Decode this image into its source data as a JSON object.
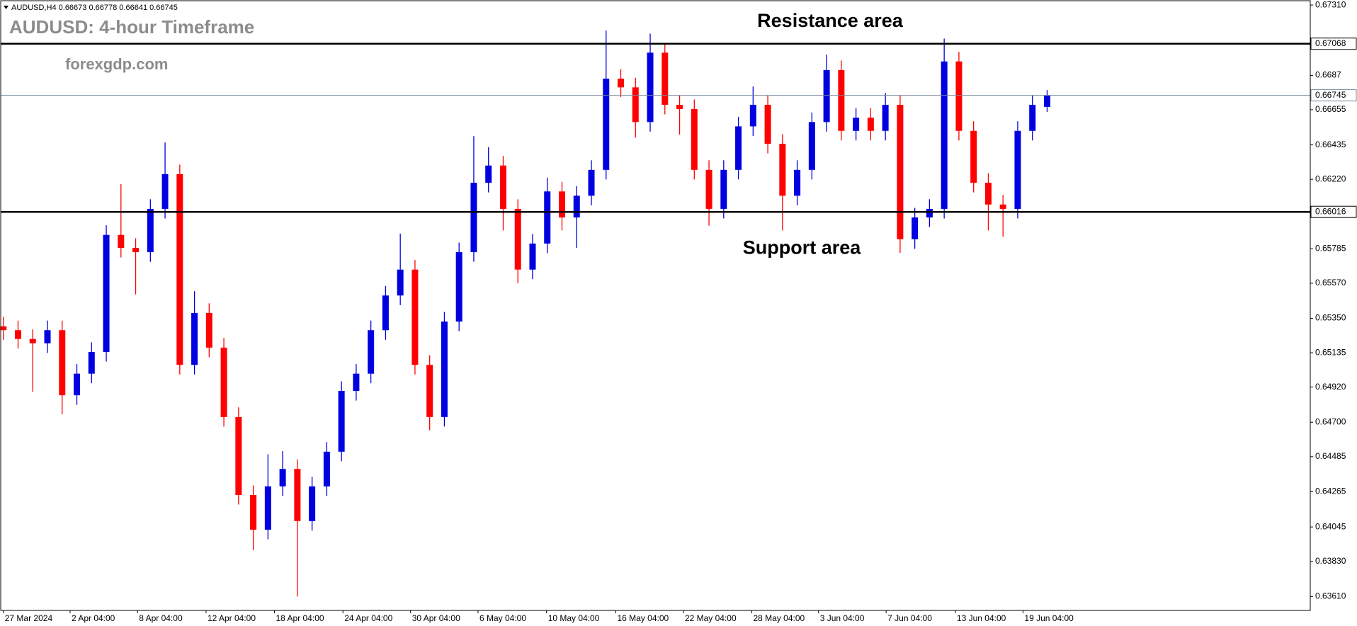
{
  "chart_data": {
    "type": "candlestick",
    "symbol": "AUDUSD,H4",
    "title": "AUDUSD: 4-hour Timeframe",
    "watermark": "forexgdp.com",
    "up_color": "#0000e0",
    "down_color": "#ff0000",
    "open": [
      0.653,
      0.65276,
      0.65221,
      0.65194,
      0.65276,
      0.64869,
      0.65004,
      0.6514,
      0.65872,
      0.65791,
      0.65764,
      0.66035,
      0.66252,
      0.65059,
      0.65384,
      0.65167,
      0.64733,
      0.64245,
      0.64028,
      0.64299,
      0.64408,
      0.64082,
      0.64299,
      0.64516,
      0.64896,
      0.65004,
      0.65276,
      0.65493,
      0.65655,
      0.65059,
      0.64733,
      0.6533,
      0.65764,
      0.66198,
      0.66306,
      0.66035,
      0.65655,
      0.65818,
      0.66144,
      0.65981,
      0.66117,
      0.66279,
      0.66849,
      0.66795,
      0.66578,
      0.67012,
      0.66686,
      0.66659,
      0.66279,
      0.66035,
      0.66279,
      0.66551,
      0.66686,
      0.66442,
      0.66117,
      0.66279,
      0.66578,
      0.66903,
      0.66523,
      0.66605,
      0.66523,
      0.66686,
      0.65845,
      0.65981,
      0.66035,
      0.66957,
      0.66523,
      0.66198,
      0.66062,
      0.66035,
      0.66523,
      0.66673
    ],
    "high": [
      0.6536,
      0.65336,
      0.65281,
      0.65336,
      0.65336,
      0.65064,
      0.652,
      0.65932,
      0.6619,
      0.65851,
      0.66095,
      0.6645,
      0.66312,
      0.6552,
      0.65444,
      0.65227,
      0.64793,
      0.64305,
      0.645,
      0.6452,
      0.64468,
      0.64359,
      0.64576,
      0.64956,
      0.65064,
      0.65336,
      0.65553,
      0.6588,
      0.65715,
      0.65119,
      0.6539,
      0.65824,
      0.6649,
      0.6642,
      0.66366,
      0.66095,
      0.65878,
      0.6623,
      0.66204,
      0.66177,
      0.66339,
      0.6715,
      0.66909,
      0.66855,
      0.67131,
      0.67072,
      0.66746,
      0.66719,
      0.66339,
      0.66339,
      0.66611,
      0.668,
      0.66746,
      0.66502,
      0.66339,
      0.66638,
      0.67,
      0.66963,
      0.66665,
      0.66665,
      0.6676,
      0.66746,
      0.66041,
      0.66095,
      0.671,
      0.67017,
      0.66583,
      0.66258,
      0.66122,
      0.66583,
      0.66746,
      0.66778
    ],
    "low": [
      0.65216,
      0.65161,
      0.6489,
      0.65134,
      0.6475,
      0.64809,
      0.64944,
      0.6508,
      0.65731,
      0.655,
      0.65704,
      0.65975,
      0.64999,
      0.64999,
      0.65107,
      0.64673,
      0.64185,
      0.639,
      0.63968,
      0.64239,
      0.6361,
      0.64022,
      0.64239,
      0.64456,
      0.64836,
      0.64944,
      0.65216,
      0.65433,
      0.64999,
      0.6465,
      0.64673,
      0.6527,
      0.65704,
      0.66138,
      0.659,
      0.6557,
      0.65595,
      0.65758,
      0.659,
      0.6579,
      0.66057,
      0.66219,
      0.66735,
      0.6648,
      0.66518,
      0.66626,
      0.665,
      0.66219,
      0.6593,
      0.65975,
      0.66219,
      0.66491,
      0.66382,
      0.659,
      0.66057,
      0.66219,
      0.66518,
      0.66463,
      0.66463,
      0.66463,
      0.66463,
      0.6576,
      0.65785,
      0.65921,
      0.65975,
      0.66463,
      0.66138,
      0.659,
      0.6586,
      0.65975,
      0.66463,
      0.66641
    ],
    "close": [
      0.65276,
      0.65221,
      0.65194,
      0.65276,
      0.64869,
      0.65004,
      0.6514,
      0.65872,
      0.65791,
      0.65764,
      0.66035,
      0.66252,
      0.65059,
      0.65384,
      0.65167,
      0.64733,
      0.64245,
      0.64028,
      0.64299,
      0.64408,
      0.64082,
      0.64299,
      0.64516,
      0.64896,
      0.65004,
      0.65276,
      0.65493,
      0.65655,
      0.65059,
      0.64733,
      0.6533,
      0.65764,
      0.66198,
      0.66306,
      0.66035,
      0.65655,
      0.65818,
      0.66144,
      0.65981,
      0.66117,
      0.66279,
      0.66849,
      0.66795,
      0.66578,
      0.67012,
      0.66686,
      0.66659,
      0.66279,
      0.66035,
      0.66279,
      0.66551,
      0.66686,
      0.66442,
      0.66117,
      0.66279,
      0.66578,
      0.66903,
      0.66523,
      0.66605,
      0.66523,
      0.66686,
      0.65845,
      0.65981,
      0.66035,
      0.66957,
      0.66523,
      0.66198,
      0.66062,
      0.66035,
      0.66523,
      0.66686,
      0.66745
    ],
    "price_line_color": "#778899",
    "levels": [
      {
        "text": "Resistance area",
        "value": 0.67068,
        "color": "#000000"
      },
      {
        "text": "Support area",
        "value": 0.66016,
        "color": "#000000"
      }
    ],
    "xlim": [
      -0.18,
      88.9
    ],
    "xticks": [
      {
        "value": 0,
        "label": "27 Mar 2024"
      },
      {
        "value": 4.54,
        "label": "2 Apr 04:00"
      },
      {
        "value": 9.13,
        "label": "8 Apr 04:00"
      },
      {
        "value": 13.79,
        "label": "12 Apr 04:00"
      },
      {
        "value": 18.44,
        "label": "18 Apr 04:00"
      },
      {
        "value": 23.1,
        "label": "24 Apr 04:00"
      },
      {
        "value": 27.7,
        "label": "30 Apr 04:00"
      },
      {
        "value": 32.29,
        "label": "6 May 04:00"
      },
      {
        "value": 36.95,
        "label": "10 May 04:00"
      },
      {
        "value": 41.66,
        "label": "16 May 04:00"
      },
      {
        "value": 46.26,
        "label": "22 May 04:00"
      },
      {
        "value": 50.91,
        "label": "28 May 04:00"
      },
      {
        "value": 55.45,
        "label": "3 Jun 04:00"
      },
      {
        "value": 60.05,
        "label": "7 Jun 04:00"
      },
      {
        "value": 64.76,
        "label": "13 Jun 04:00"
      },
      {
        "value": 69.36,
        "label": "19 Jun 04:00"
      }
    ],
    "ylim": [
      0.63523,
      0.67337
    ],
    "yticks": [
      {
        "value": 0.6731,
        "label": "0.67310"
      },
      0.6687,
      0.66655,
      0.66435,
      {
        "value": 0.6622,
        "label": "0.66220"
      },
      0.65785,
      {
        "value": 0.6557,
        "label": "0.65570"
      },
      {
        "value": 0.6535,
        "label": "0.65350"
      },
      0.65135,
      {
        "value": 0.6492,
        "label": "0.64920"
      },
      {
        "value": 0.647,
        "label": "0.64700"
      },
      0.64485,
      0.64265,
      0.64045,
      {
        "value": 0.6383,
        "label": "0.63830"
      },
      {
        "value": 0.6361,
        "label": "0.63610"
      }
    ]
  }
}
